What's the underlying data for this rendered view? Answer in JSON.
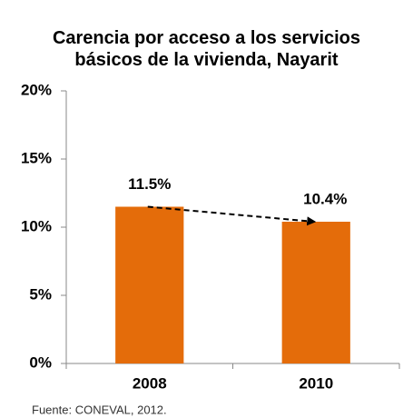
{
  "chart_data": {
    "type": "bar",
    "title": "Carencia por acceso a los servicios básicos de la vivienda, Nayarit",
    "categories": [
      "2008",
      "2010"
    ],
    "values": [
      11.5,
      10.4
    ],
    "value_labels": [
      "11.5%",
      "10.4%"
    ],
    "color": "#e46c0a",
    "ylim": [
      0,
      20
    ],
    "yticks": [
      {
        "value": 0,
        "label": "0%"
      },
      {
        "value": 5,
        "label": "5%"
      },
      {
        "value": 10,
        "label": "10%"
      },
      {
        "value": 15,
        "label": "15%"
      },
      {
        "value": 20,
        "label": "20%"
      }
    ],
    "grid": false,
    "source": "Fuente: CONEVAL, 2012."
  }
}
